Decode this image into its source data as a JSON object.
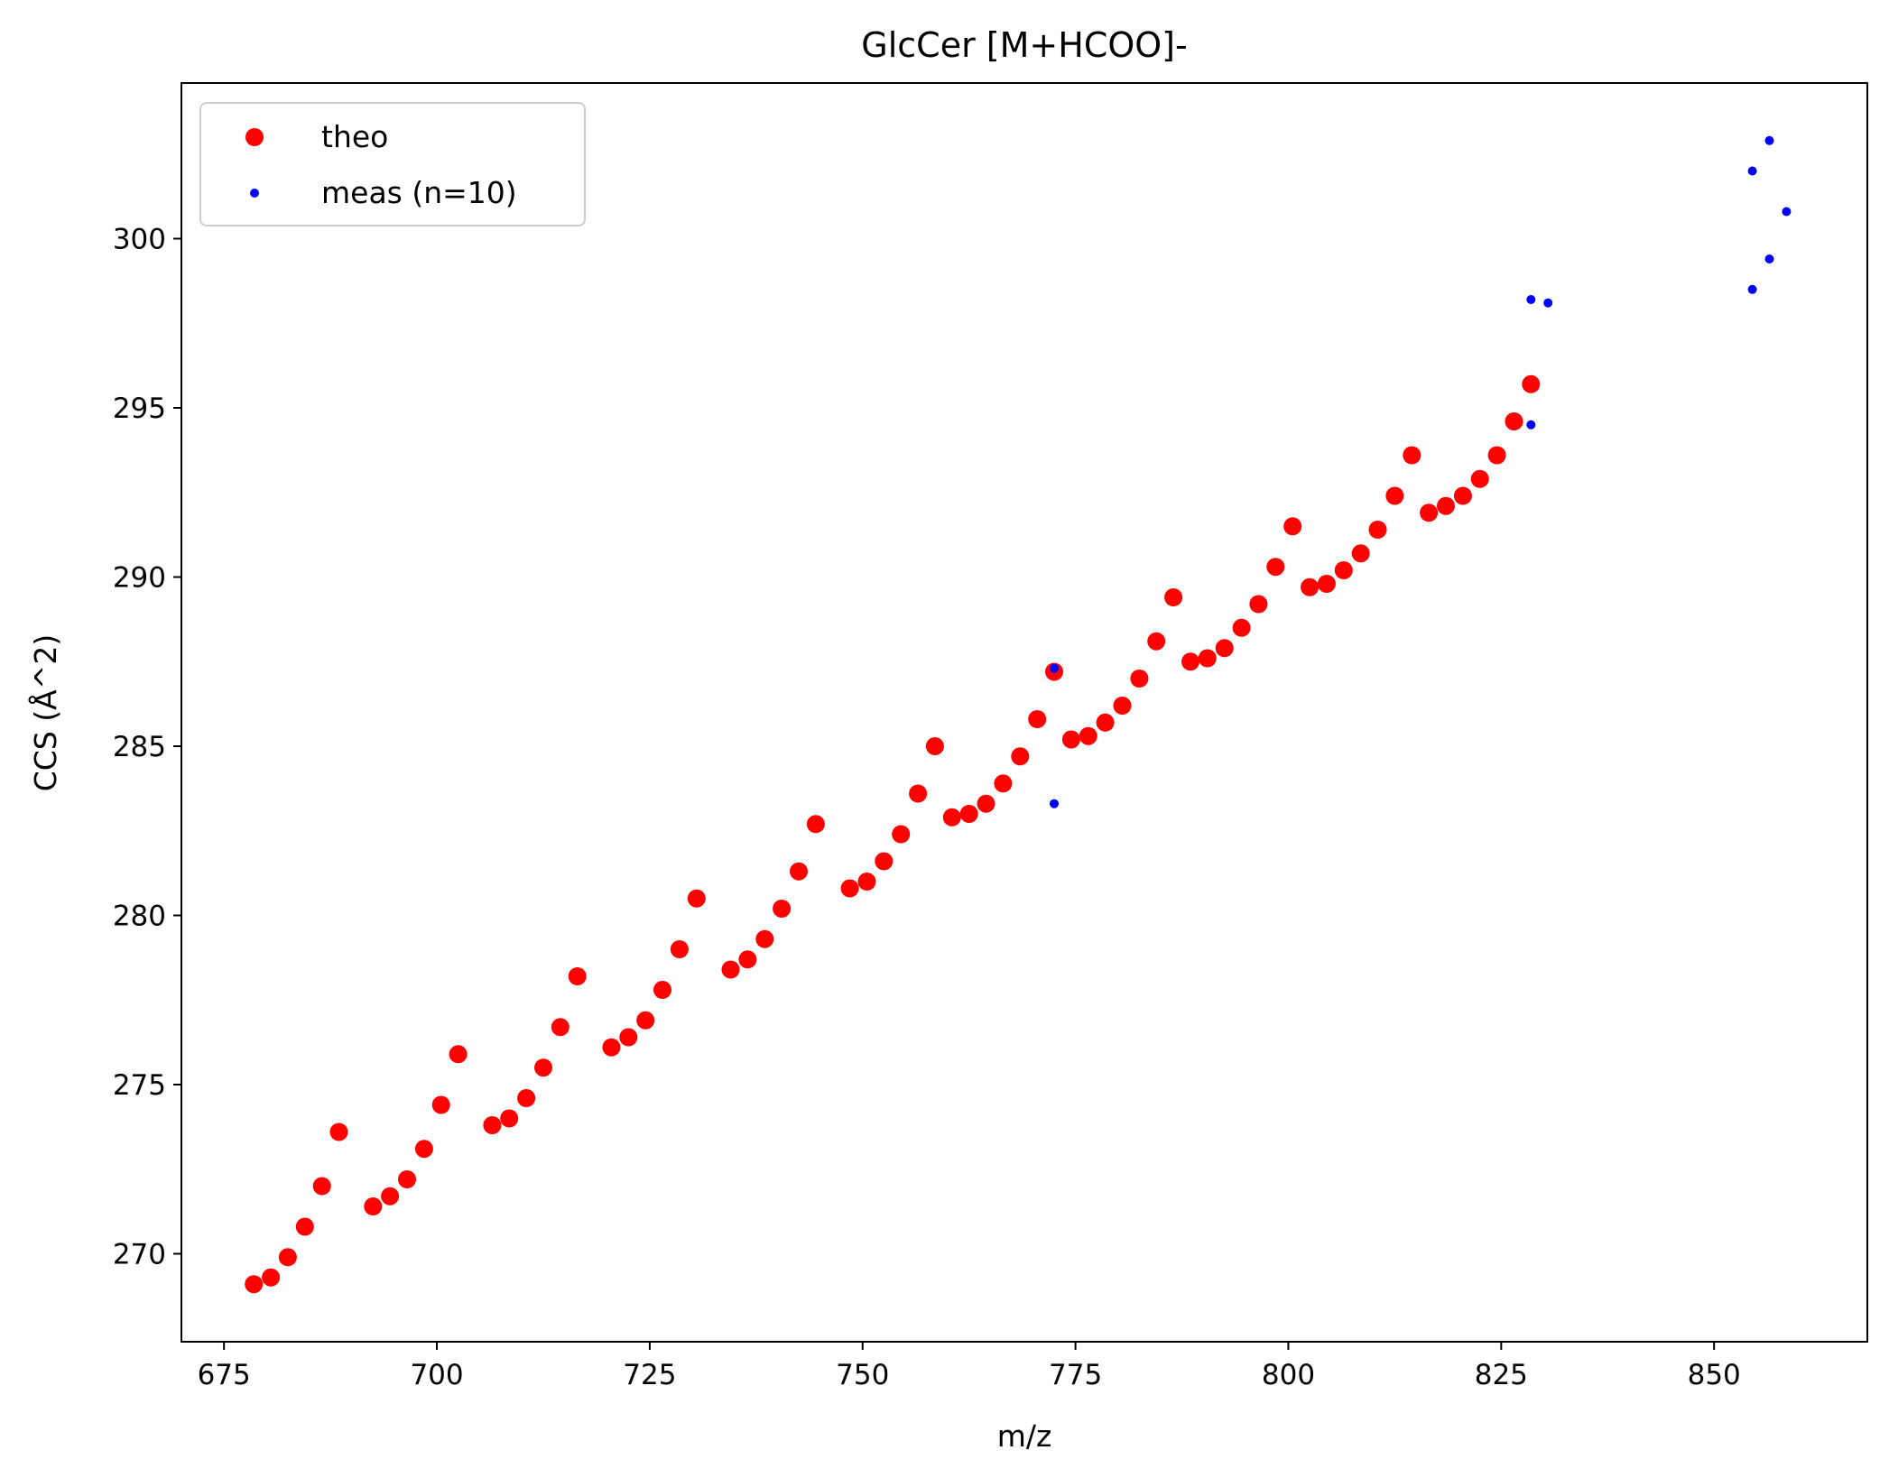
{
  "chart_data": {
    "type": "scatter",
    "title": "GlcCer [M+HCOO]-",
    "xlabel": "m/z",
    "ylabel": "CCS (Å^2)",
    "xlim": [
      670,
      868
    ],
    "ylim": [
      267.4,
      304.6
    ],
    "xticks": [
      675,
      700,
      725,
      750,
      775,
      800,
      825,
      850
    ],
    "yticks": [
      270,
      275,
      280,
      285,
      290,
      295,
      300
    ],
    "grid": false,
    "legend_position": "top-left",
    "series": [
      {
        "name": "theo",
        "color": "#ff0000",
        "marker": "large-dot",
        "points": [
          [
            678.5,
            269.1
          ],
          [
            680.5,
            269.3
          ],
          [
            682.5,
            269.9
          ],
          [
            684.5,
            270.8
          ],
          [
            686.5,
            272.0
          ],
          [
            688.5,
            273.6
          ],
          [
            692.5,
            271.4
          ],
          [
            694.5,
            271.7
          ],
          [
            696.5,
            272.2
          ],
          [
            698.5,
            273.1
          ],
          [
            700.5,
            274.4
          ],
          [
            702.5,
            275.9
          ],
          [
            706.5,
            273.8
          ],
          [
            708.5,
            274.0
          ],
          [
            710.5,
            274.6
          ],
          [
            712.5,
            275.5
          ],
          [
            714.5,
            276.7
          ],
          [
            716.5,
            278.2
          ],
          [
            720.5,
            276.1
          ],
          [
            722.5,
            276.4
          ],
          [
            724.5,
            276.9
          ],
          [
            726.5,
            277.8
          ],
          [
            728.5,
            279.0
          ],
          [
            730.5,
            280.5
          ],
          [
            734.5,
            278.4
          ],
          [
            736.5,
            278.7
          ],
          [
            738.5,
            279.3
          ],
          [
            740.5,
            280.2
          ],
          [
            742.5,
            281.3
          ],
          [
            744.5,
            282.7
          ],
          [
            748.5,
            280.8
          ],
          [
            750.5,
            281.0
          ],
          [
            752.5,
            281.6
          ],
          [
            754.5,
            282.4
          ],
          [
            756.5,
            283.6
          ],
          [
            758.5,
            285.0
          ],
          [
            760.5,
            282.9
          ],
          [
            762.5,
            283.0
          ],
          [
            764.5,
            283.3
          ],
          [
            766.5,
            283.9
          ],
          [
            768.5,
            284.7
          ],
          [
            770.5,
            285.8
          ],
          [
            772.5,
            287.2
          ],
          [
            774.5,
            285.2
          ],
          [
            776.5,
            285.3
          ],
          [
            778.5,
            285.7
          ],
          [
            780.5,
            286.2
          ],
          [
            782.5,
            287.0
          ],
          [
            784.5,
            288.1
          ],
          [
            786.5,
            289.4
          ],
          [
            788.5,
            287.5
          ],
          [
            790.5,
            287.6
          ],
          [
            792.5,
            287.9
          ],
          [
            794.5,
            288.5
          ],
          [
            796.5,
            289.2
          ],
          [
            798.5,
            290.3
          ],
          [
            800.5,
            291.5
          ],
          [
            802.5,
            289.7
          ],
          [
            804.5,
            289.8
          ],
          [
            806.5,
            290.2
          ],
          [
            808.5,
            290.7
          ],
          [
            810.5,
            291.4
          ],
          [
            812.5,
            292.4
          ],
          [
            814.5,
            293.6
          ],
          [
            816.5,
            291.9
          ],
          [
            818.5,
            292.1
          ],
          [
            820.5,
            292.4
          ],
          [
            822.5,
            292.9
          ],
          [
            824.5,
            293.6
          ],
          [
            826.5,
            294.6
          ],
          [
            828.5,
            295.7
          ]
        ]
      },
      {
        "name": "meas (n=10)",
        "color": "#0000ff",
        "marker": "small-dot",
        "points": [
          [
            772.5,
            287.3
          ],
          [
            772.5,
            283.3
          ],
          [
            828.5,
            298.2
          ],
          [
            828.5,
            294.5
          ],
          [
            830.5,
            298.1
          ],
          [
            854.5,
            302.0
          ],
          [
            856.5,
            302.9
          ],
          [
            858.5,
            300.8
          ],
          [
            856.5,
            299.4
          ],
          [
            854.5,
            298.5
          ]
        ]
      }
    ]
  }
}
